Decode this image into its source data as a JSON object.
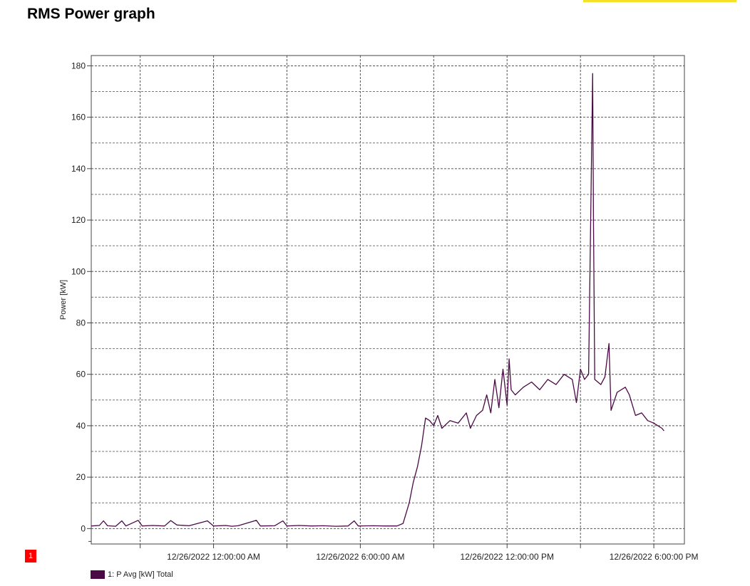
{
  "page": {
    "title": "RMS Power graph",
    "accent_color": "#f5e12a",
    "marker": {
      "label": "1",
      "color": "#ff0000"
    }
  },
  "chart_data": {
    "type": "line",
    "title": "",
    "xlabel": "",
    "ylabel": "Power [kW]",
    "ylim": [
      -6,
      184
    ],
    "xlim": [
      "2022-12-25T19:00:00",
      "2022-12-26T19:15:00"
    ],
    "yticks": [
      0,
      20,
      40,
      60,
      80,
      100,
      120,
      140,
      160,
      180
    ],
    "xticks": [
      {
        "x": "2022-12-26T00:00:00",
        "label": "12/26/2022 12:00:00 AM"
      },
      {
        "x": "2022-12-26T06:00:00",
        "label": "12/26/2022 6:00:00 AM"
      },
      {
        "x": "2022-12-26T12:00:00",
        "label": "12/26/2022 12:00:00 PM"
      },
      {
        "x": "2022-12-26T18:00:00",
        "label": "12/26/2022 6:00:00 PM"
      }
    ],
    "grid": true,
    "grid_style": "dashed",
    "legend_position": "bottom-left",
    "series": [
      {
        "name": "1: P Avg [kW] Total",
        "color": "#4a0a45",
        "points": [
          [
            "2022-12-25T19:00:00",
            1.0
          ],
          [
            "2022-12-25T19:20:00",
            1.2
          ],
          [
            "2022-12-25T19:30:00",
            3.0
          ],
          [
            "2022-12-25T19:40:00",
            1.1
          ],
          [
            "2022-12-25T20:00:00",
            0.9
          ],
          [
            "2022-12-25T20:15:00",
            3.0
          ],
          [
            "2022-12-25T20:25:00",
            1.0
          ],
          [
            "2022-12-25T20:55:00",
            3.2
          ],
          [
            "2022-12-25T21:05:00",
            1.0
          ],
          [
            "2022-12-25T21:30:00",
            1.2
          ],
          [
            "2022-12-25T22:00:00",
            1.0
          ],
          [
            "2022-12-25T22:15:00",
            3.1
          ],
          [
            "2022-12-25T22:30:00",
            1.4
          ],
          [
            "2022-12-25T23:00:00",
            1.1
          ],
          [
            "2022-12-25T23:45:00",
            3.0
          ],
          [
            "2022-12-26T00:00:00",
            1.0
          ],
          [
            "2022-12-26T00:30:00",
            1.2
          ],
          [
            "2022-12-26T00:45:00",
            0.9
          ],
          [
            "2022-12-26T01:00:00",
            1.1
          ],
          [
            "2022-12-26T01:45:00",
            3.2
          ],
          [
            "2022-12-26T01:55:00",
            1.0
          ],
          [
            "2022-12-26T02:30:00",
            1.1
          ],
          [
            "2022-12-26T02:50:00",
            3.0
          ],
          [
            "2022-12-26T03:00:00",
            1.0
          ],
          [
            "2022-12-26T03:30:00",
            1.2
          ],
          [
            "2022-12-26T04:00:00",
            1.0
          ],
          [
            "2022-12-26T04:30:00",
            1.1
          ],
          [
            "2022-12-26T05:00:00",
            0.9
          ],
          [
            "2022-12-26T05:30:00",
            1.0
          ],
          [
            "2022-12-26T05:45:00",
            3.0
          ],
          [
            "2022-12-26T05:55:00",
            1.0
          ],
          [
            "2022-12-26T06:30:00",
            1.1
          ],
          [
            "2022-12-26T07:00:00",
            1.0
          ],
          [
            "2022-12-26T07:30:00",
            1.0
          ],
          [
            "2022-12-26T07:45:00",
            2.0
          ],
          [
            "2022-12-26T08:00:00",
            10.0
          ],
          [
            "2022-12-26T08:10:00",
            18.0
          ],
          [
            "2022-12-26T08:20:00",
            24.0
          ],
          [
            "2022-12-26T08:30:00",
            32.0
          ],
          [
            "2022-12-26T08:40:00",
            43.0
          ],
          [
            "2022-12-26T08:50:00",
            42.0
          ],
          [
            "2022-12-26T09:00:00",
            40.0
          ],
          [
            "2022-12-26T09:10:00",
            44.0
          ],
          [
            "2022-12-26T09:20:00",
            39.0
          ],
          [
            "2022-12-26T09:40:00",
            42.0
          ],
          [
            "2022-12-26T10:00:00",
            41.0
          ],
          [
            "2022-12-26T10:20:00",
            45.0
          ],
          [
            "2022-12-26T10:30:00",
            39.0
          ],
          [
            "2022-12-26T10:45:00",
            44.0
          ],
          [
            "2022-12-26T11:00:00",
            46.0
          ],
          [
            "2022-12-26T11:10:00",
            52.0
          ],
          [
            "2022-12-26T11:20:00",
            45.0
          ],
          [
            "2022-12-26T11:30:00",
            58.0
          ],
          [
            "2022-12-26T11:40:00",
            47.0
          ],
          [
            "2022-12-26T11:50:00",
            62.0
          ],
          [
            "2022-12-26T12:00:00",
            48.0
          ],
          [
            "2022-12-26T12:05:00",
            66.0
          ],
          [
            "2022-12-26T12:10:00",
            54.0
          ],
          [
            "2022-12-26T12:20:00",
            52.0
          ],
          [
            "2022-12-26T12:40:00",
            55.0
          ],
          [
            "2022-12-26T13:00:00",
            57.0
          ],
          [
            "2022-12-26T13:20:00",
            54.0
          ],
          [
            "2022-12-26T13:40:00",
            58.0
          ],
          [
            "2022-12-26T14:00:00",
            56.0
          ],
          [
            "2022-12-26T14:20:00",
            60.0
          ],
          [
            "2022-12-26T14:40:00",
            58.0
          ],
          [
            "2022-12-26T14:50:00",
            49.0
          ],
          [
            "2022-12-26T15:00:00",
            62.0
          ],
          [
            "2022-12-26T15:10:00",
            58.0
          ],
          [
            "2022-12-26T15:20:00",
            60.0
          ],
          [
            "2022-12-26T15:30:00",
            177.0
          ],
          [
            "2022-12-26T15:32:00",
            118.0
          ],
          [
            "2022-12-26T15:35:00",
            58.0
          ],
          [
            "2022-12-26T15:50:00",
            56.0
          ],
          [
            "2022-12-26T16:00:00",
            59.0
          ],
          [
            "2022-12-26T16:10:00",
            72.0
          ],
          [
            "2022-12-26T16:15:00",
            46.0
          ],
          [
            "2022-12-26T16:30:00",
            53.0
          ],
          [
            "2022-12-26T16:50:00",
            55.0
          ],
          [
            "2022-12-26T17:00:00",
            52.0
          ],
          [
            "2022-12-26T17:15:00",
            44.0
          ],
          [
            "2022-12-26T17:30:00",
            45.0
          ],
          [
            "2022-12-26T17:45:00",
            42.0
          ],
          [
            "2022-12-26T18:00:00",
            41.0
          ],
          [
            "2022-12-26T18:10:00",
            40.0
          ],
          [
            "2022-12-26T18:20:00",
            39.0
          ],
          [
            "2022-12-26T18:25:00",
            38.0
          ]
        ]
      }
    ]
  }
}
